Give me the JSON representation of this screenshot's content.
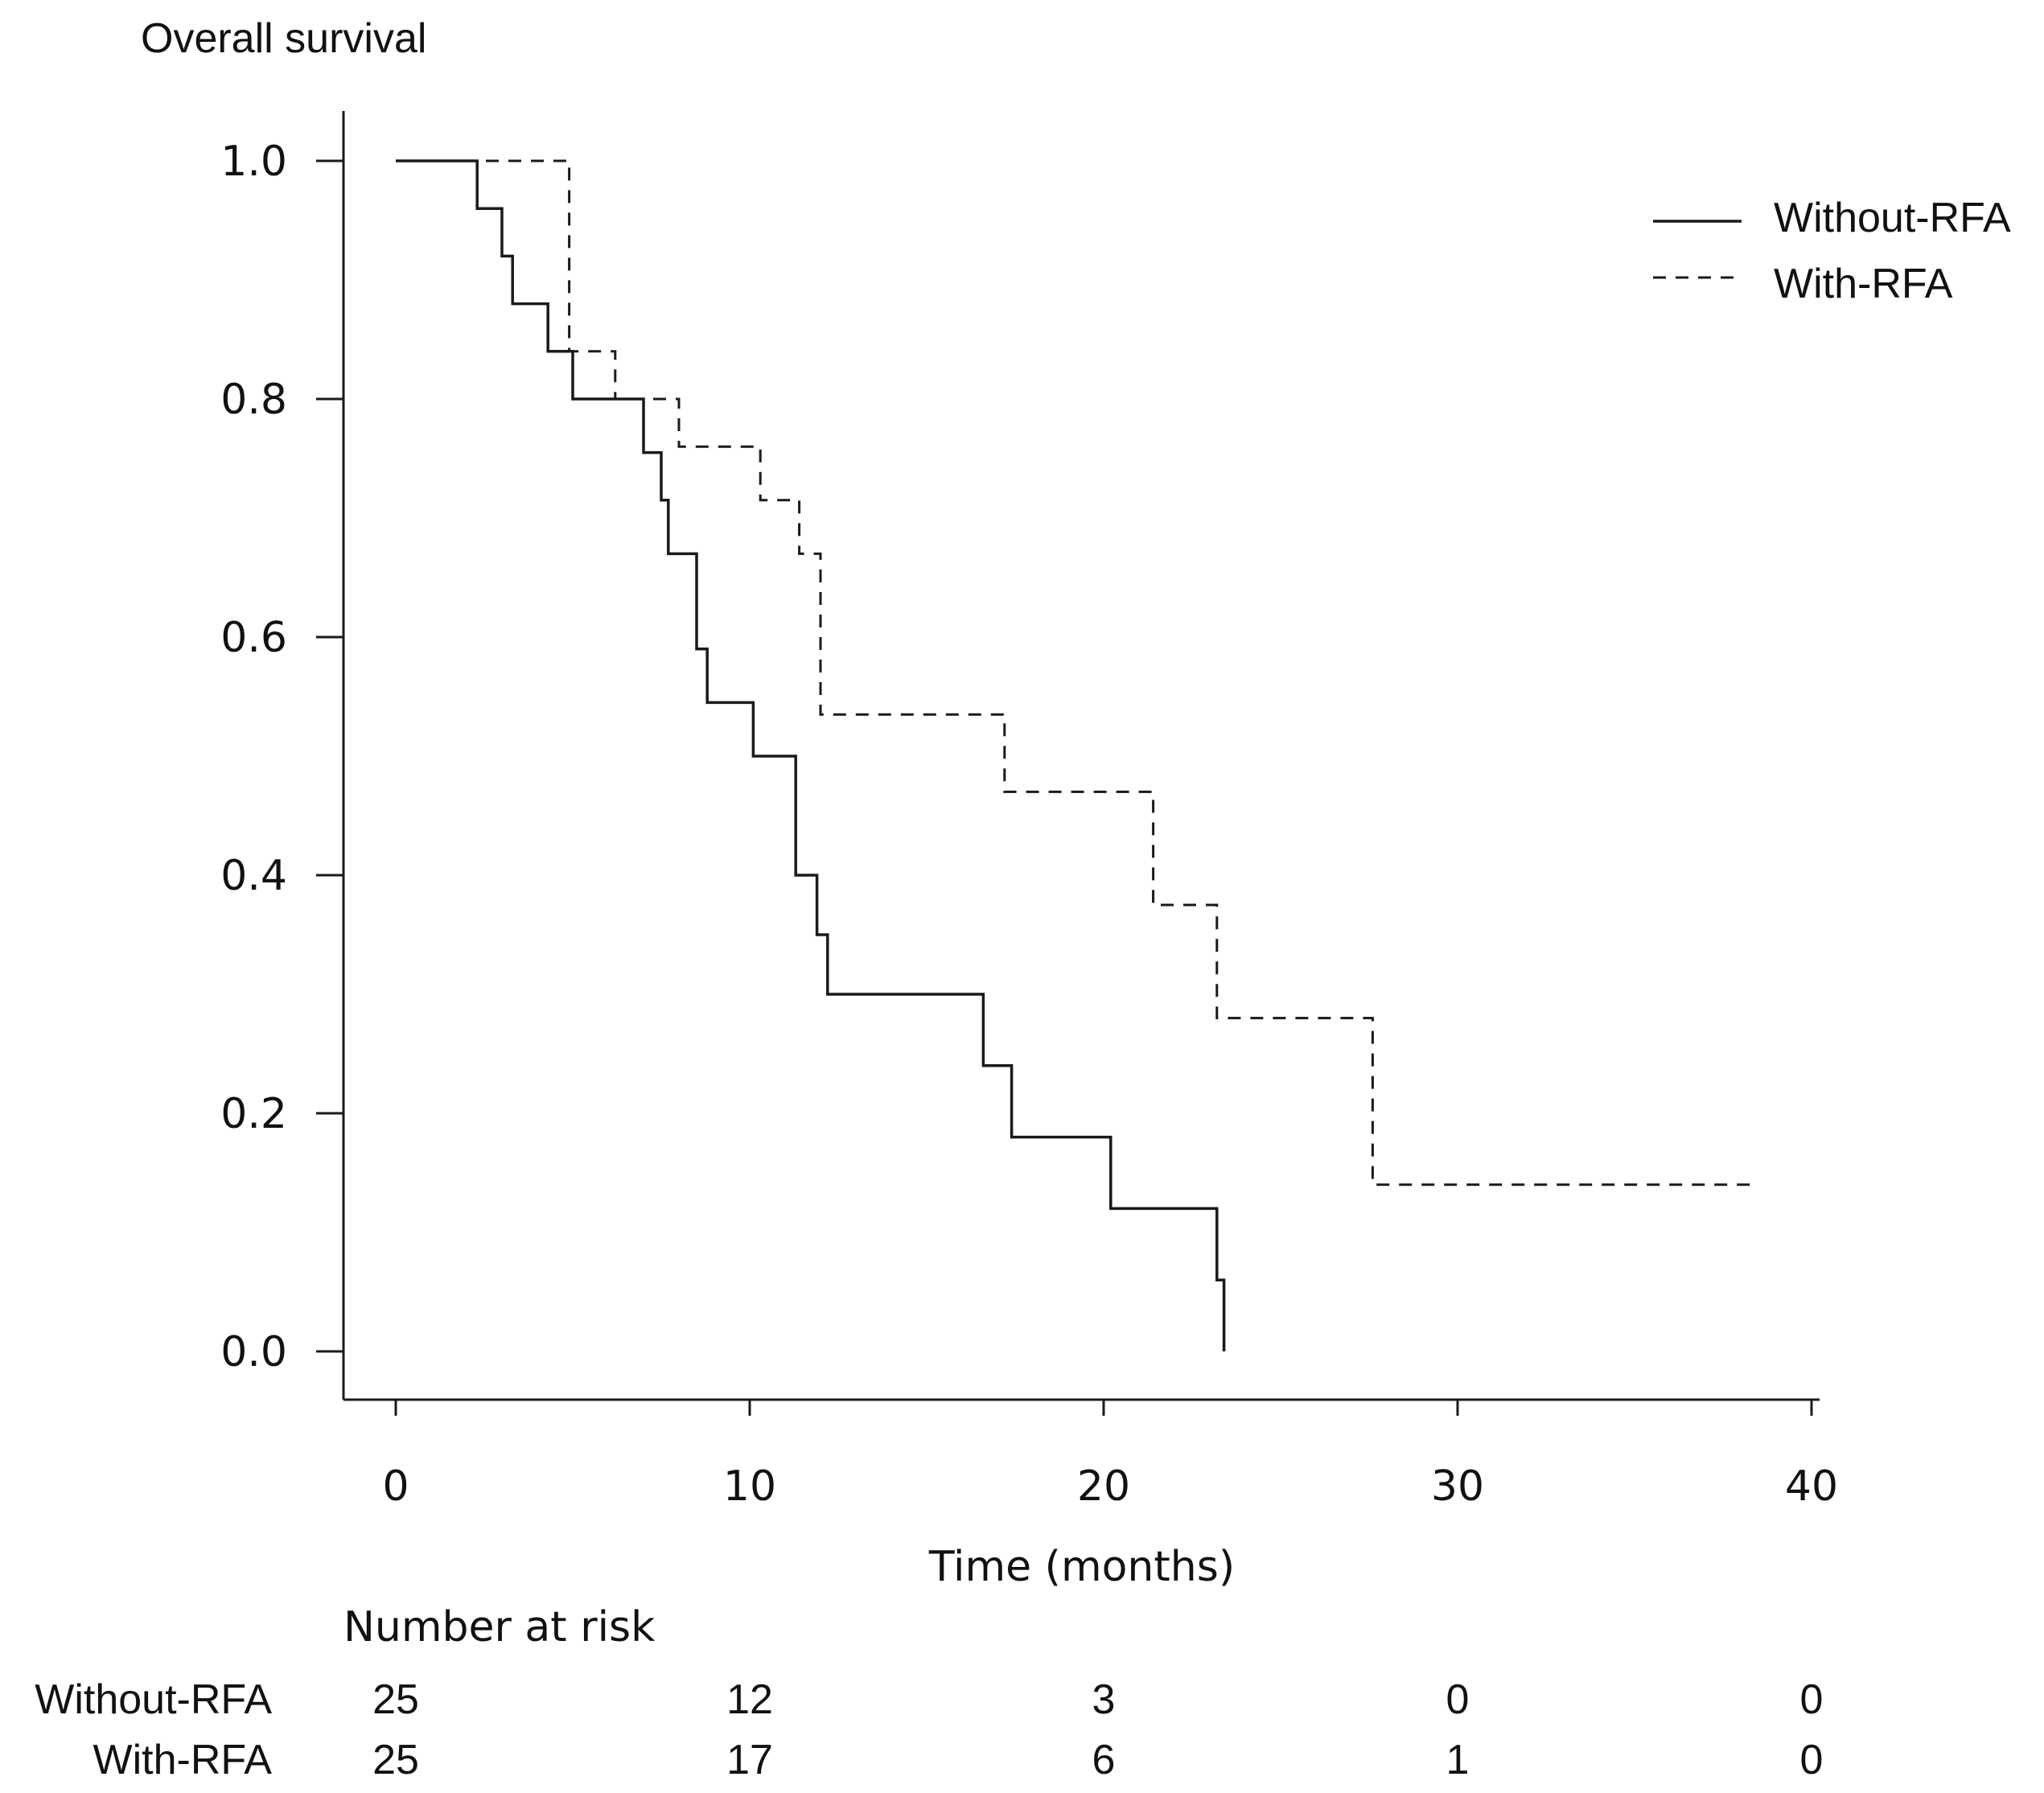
{
  "chart_data": {
    "type": "line",
    "subtype": "kaplan-meier step",
    "ylabel": "Overall survival",
    "xlabel": "Time (months)",
    "xlim": [
      0,
      40
    ],
    "ylim": [
      0,
      1
    ],
    "xticks": [
      "0",
      "10",
      "20",
      "30",
      "40"
    ],
    "yticks": [
      "0.0",
      "0.2",
      "0.4",
      "0.6",
      "0.8",
      "1.0"
    ],
    "legend_position": "top-right",
    "series": [
      {
        "name": "Without-RFA",
        "style": "solid",
        "steps": [
          [
            0,
            1.0
          ],
          [
            2.3,
            0.96
          ],
          [
            3.0,
            0.92
          ],
          [
            3.3,
            0.88
          ],
          [
            4.3,
            0.84
          ],
          [
            5.0,
            0.8
          ],
          [
            7.0,
            0.755
          ],
          [
            7.5,
            0.715
          ],
          [
            7.7,
            0.67
          ],
          [
            8.5,
            0.59
          ],
          [
            8.8,
            0.545
          ],
          [
            10.1,
            0.5
          ],
          [
            11.3,
            0.4
          ],
          [
            11.9,
            0.35
          ],
          [
            12.2,
            0.3
          ],
          [
            16.6,
            0.24
          ],
          [
            17.4,
            0.18
          ],
          [
            20.2,
            0.12
          ],
          [
            23.2,
            0.06
          ],
          [
            23.4,
            0.0
          ]
        ],
        "end_x": 23.4
      },
      {
        "name": "With-RFA",
        "style": "dashed",
        "steps": [
          [
            0,
            1.0
          ],
          [
            4.9,
            0.84
          ],
          [
            6.2,
            0.8
          ],
          [
            8.0,
            0.76
          ],
          [
            10.3,
            0.715
          ],
          [
            11.4,
            0.67
          ],
          [
            12.0,
            0.535
          ],
          [
            17.2,
            0.47
          ],
          [
            21.4,
            0.375
          ],
          [
            23.2,
            0.28
          ],
          [
            27.6,
            0.14
          ]
        ],
        "end_x": 38.5
      }
    ],
    "risk_table": {
      "title": "Number at risk",
      "times": [
        0,
        10,
        20,
        30,
        40
      ],
      "rows": [
        {
          "label": "Without-RFA",
          "values": [
            "25",
            "12",
            "3",
            "0",
            "0"
          ]
        },
        {
          "label": "With-RFA",
          "values": [
            "25",
            "17",
            "6",
            "1",
            "0"
          ]
        }
      ]
    }
  },
  "colors": {
    "line": "#1a1a1a",
    "axis": "#1a1a1a",
    "text": "#111111"
  }
}
